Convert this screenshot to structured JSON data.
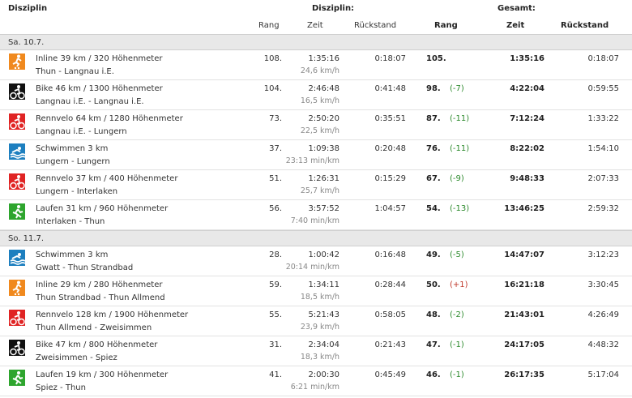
{
  "header": {
    "disziplin": "Disziplin",
    "disziplin_group": "Disziplin:",
    "gesamt_group": "Gesamt:",
    "rang": "Rang",
    "zeit": "Zeit",
    "rueckstand": "Rückstand",
    "g_rang": "Rang",
    "g_zeit": "Zeit",
    "g_rueckstand": "Rückstand"
  },
  "colors": {
    "inline": "#f0891e",
    "bike": "#111111",
    "rennvelo": "#e02424",
    "schwimmen": "#1d7fbf",
    "laufen": "#2ea52e",
    "delta_pos": "#2e8b2e",
    "delta_neg": "#c0392b"
  },
  "days": [
    {
      "date": "Sa. 10.7.",
      "rows": [
        {
          "icon": "inline-skate-icon",
          "color": "#f0891e",
          "title": "Inline 39 km / 320 Höhenmeter",
          "route": "Thun - Langnau i.E.",
          "rang": "108.",
          "zeit": "1:35:16",
          "speed": "24,6 km/h",
          "rueck": "0:18:07",
          "g_rang": "105.",
          "g_delta": "",
          "g_zeit": "1:35:16",
          "g_rueck": "0:18:07"
        },
        {
          "icon": "bike-icon",
          "color": "#111111",
          "title": "Bike 46 km / 1300 Höhenmeter",
          "route": "Langnau i.E. - Langnau i.E.",
          "rang": "104.",
          "zeit": "2:46:48",
          "speed": "16,5 km/h",
          "rueck": "0:41:48",
          "g_rang": "98.",
          "g_delta": "(-7)",
          "g_zeit": "4:22:04",
          "g_rueck": "0:59:55"
        },
        {
          "icon": "road-bike-icon",
          "color": "#e02424",
          "title": "Rennvelo 64 km / 1280 Höhenmeter",
          "route": "Langnau i.E. - Lungern",
          "rang": "73.",
          "zeit": "2:50:20",
          "speed": "22,5 km/h",
          "rueck": "0:35:51",
          "g_rang": "87.",
          "g_delta": "(-11)",
          "g_zeit": "7:12:24",
          "g_rueck": "1:33:22"
        },
        {
          "icon": "swim-icon",
          "color": "#1d7fbf",
          "title": "Schwimmen 3 km",
          "route": "Lungern - Lungern",
          "rang": "37.",
          "zeit": "1:09:38",
          "speed": "23:13 min/km",
          "rueck": "0:20:48",
          "g_rang": "76.",
          "g_delta": "(-11)",
          "g_zeit": "8:22:02",
          "g_rueck": "1:54:10"
        },
        {
          "icon": "road-bike-icon",
          "color": "#e02424",
          "title": "Rennvelo 37 km / 400 Höhenmeter",
          "route": "Lungern - Interlaken",
          "rang": "51.",
          "zeit": "1:26:31",
          "speed": "25,7 km/h",
          "rueck": "0:15:29",
          "g_rang": "67.",
          "g_delta": "(-9)",
          "g_zeit": "9:48:33",
          "g_rueck": "2:07:33"
        },
        {
          "icon": "run-icon",
          "color": "#2ea52e",
          "title": "Laufen 31 km / 960 Höhenmeter",
          "route": "Interlaken - Thun",
          "rang": "56.",
          "zeit": "3:57:52",
          "speed": "7:40 min/km",
          "rueck": "1:04:57",
          "g_rang": "54.",
          "g_delta": "(-13)",
          "g_zeit": "13:46:25",
          "g_rueck": "2:59:32"
        }
      ]
    },
    {
      "date": "So. 11.7.",
      "rows": [
        {
          "icon": "swim-icon",
          "color": "#1d7fbf",
          "title": "Schwimmen 3 km",
          "route": "Gwatt - Thun Strandbad",
          "rang": "28.",
          "zeit": "1:00:42",
          "speed": "20:14 min/km",
          "rueck": "0:16:48",
          "g_rang": "49.",
          "g_delta": "(-5)",
          "g_zeit": "14:47:07",
          "g_rueck": "3:12:23"
        },
        {
          "icon": "inline-skate-icon",
          "color": "#f0891e",
          "title": "Inline 29 km / 280 Höhenmeter",
          "route": "Thun Strandbad - Thun Allmend",
          "rang": "59.",
          "zeit": "1:34:11",
          "speed": "18,5 km/h",
          "rueck": "0:28:44",
          "g_rang": "50.",
          "g_delta": "(+1)",
          "g_zeit": "16:21:18",
          "g_rueck": "3:30:45"
        },
        {
          "icon": "road-bike-icon",
          "color": "#e02424",
          "title": "Rennvelo 128 km / 1900 Höhenmeter",
          "route": "Thun Allmend - Zweisimmen",
          "rang": "55.",
          "zeit": "5:21:43",
          "speed": "23,9 km/h",
          "rueck": "0:58:05",
          "g_rang": "48.",
          "g_delta": "(-2)",
          "g_zeit": "21:43:01",
          "g_rueck": "4:26:49"
        },
        {
          "icon": "bike-icon",
          "color": "#111111",
          "title": "Bike 47 km / 800 Höhenmeter",
          "route": "Zweisimmen - Spiez",
          "rang": "31.",
          "zeit": "2:34:04",
          "speed": "18,3 km/h",
          "rueck": "0:21:43",
          "g_rang": "47.",
          "g_delta": "(-1)",
          "g_zeit": "24:17:05",
          "g_rueck": "4:48:32"
        },
        {
          "icon": "run-icon",
          "color": "#2ea52e",
          "title": "Laufen 19 km / 300 Höhenmeter",
          "route": "Spiez - Thun",
          "rang": "41.",
          "zeit": "2:00:30",
          "speed": "6:21 min/km",
          "rueck": "0:45:49",
          "g_rang": "46.",
          "g_delta": "(-1)",
          "g_zeit": "26:17:35",
          "g_rueck": "5:17:04"
        }
      ]
    }
  ]
}
